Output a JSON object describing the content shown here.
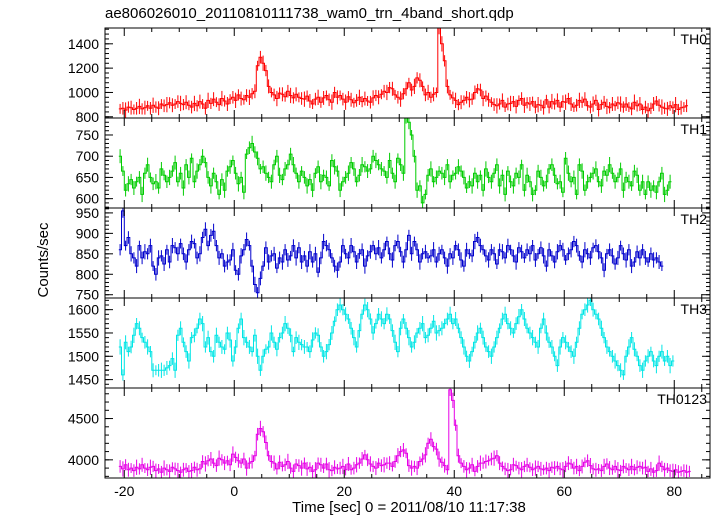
{
  "chart_data": {
    "type": "line",
    "title": "ae806026010_20110810111738_wam0_trn_4band_short.qdp",
    "xlabel": "Time [sec] 0 = 2011/08/10 11:17:38",
    "ylabel": "Counts/sec",
    "xlim": [
      -23.5,
      86.5
    ],
    "x_ticks": [
      -20,
      0,
      20,
      40,
      60,
      80
    ],
    "bin_width": 0.5,
    "panels": [
      {
        "name": "TH0",
        "color": "#ff0000",
        "ylim": [
          790,
          1530
        ],
        "y_ticks": [
          800,
          1000,
          1200,
          1400
        ],
        "x_start": -21.0,
        "values": [
          865,
          870,
          855,
          880,
          875,
          860,
          870,
          885,
          865,
          875,
          890,
          870,
          895,
          880,
          870,
          905,
          890,
          900,
          915,
          895,
          905,
          925,
          910,
          900,
          920,
          895,
          880,
          910,
          890,
          925,
          905,
          870,
          935,
          910,
          945,
          920,
          900,
          950,
          930,
          905,
          945,
          960,
          935,
          980,
          950,
          940,
          975,
          960,
          990,
          1010,
          1220,
          1290,
          1240,
          1180,
          1050,
          1000,
          980,
          950,
          995,
          985,
          965,
          1010,
          975,
          955,
          985,
          960,
          950,
          945,
          970,
          930,
          905,
          945,
          960,
          920,
          955,
          975,
          940,
          920,
          1000,
          960,
          975,
          945,
          920,
          965,
          940,
          915,
          935,
          960,
          925,
          950,
          930,
          920,
          955,
          975,
          960,
          985,
          1010,
          1000,
          1040,
          1030,
          980,
          960,
          945,
          990,
          1030,
          1080,
          1020,
          1050,
          1120,
          1100,
          1050,
          980,
          1000,
          960,
          985,
          1000,
          1530,
          1400,
          1260,
          1050,
          980,
          955,
          935,
          900,
          920,
          935,
          960,
          940,
          945,
          1000,
          1030,
          1020,
          950,
          970,
          940,
          920,
          900,
          890,
          905,
          935,
          880,
          905,
          910,
          925,
          885,
          935,
          950,
          895,
          915,
          905,
          925,
          880,
          900,
          895,
          875,
          940,
          880,
          925,
          905,
          935,
          880,
          925,
          920,
          950,
          905,
          880,
          895,
          935,
          920,
          945,
          890,
          880,
          905,
          935,
          860,
          900,
          920,
          885,
          875,
          905,
          890,
          915,
          905,
          880,
          905,
          880,
          865,
          920,
          890,
          905,
          860,
          880,
          850,
          870,
          905,
          930,
          895,
          880,
          870,
          865,
          890,
          875,
          900,
          860,
          875,
          880,
          890
        ]
      },
      {
        "name": "TH1",
        "color": "#00cc00",
        "ylim": [
          578,
          790
        ],
        "y_ticks": [
          600,
          650,
          700,
          750
        ],
        "x_start": -21.0,
        "values": [
          700,
          665,
          620,
          635,
          645,
          625,
          640,
          650,
          610,
          660,
          680,
          650,
          635,
          640,
          625,
          670,
          655,
          640,
          650,
          665,
          685,
          640,
          660,
          625,
          680,
          650,
          695,
          640,
          665,
          680,
          700,
          685,
          650,
          630,
          660,
          640,
          610,
          645,
          620,
          665,
          675,
          690,
          660,
          635,
          650,
          615,
          705,
          720,
          730,
          710,
          695,
          670,
          675,
          660,
          650,
          640,
          680,
          700,
          655,
          645,
          670,
          680,
          705,
          680,
          660,
          640,
          665,
          650,
          630,
          645,
          620,
          660,
          675,
          640,
          655,
          650,
          630,
          690,
          675,
          665,
          620,
          640,
          650,
          660,
          685,
          670,
          640,
          655,
          680,
          675,
          665,
          670,
          700,
          690,
          680,
          670,
          665,
          650,
          690,
          660,
          640,
          695,
          680,
          660,
          790,
          780,
          750,
          700,
          620,
          630,
          590,
          610,
          655,
          670,
          640,
          650,
          665,
          660,
          650,
          680,
          640,
          655,
          660,
          675,
          665,
          650,
          625,
          640,
          630,
          660,
          640,
          655,
          620,
          670,
          650,
          640,
          660,
          680,
          630,
          655,
          610,
          665,
          640,
          630,
          660,
          650,
          680,
          620,
          655,
          640,
          610,
          620,
          665,
          650,
          630,
          640,
          670,
          680,
          655,
          635,
          640,
          615,
          695,
          660,
          640,
          650,
          610,
          680,
          665,
          620,
          640,
          650,
          660,
          670,
          640,
          630,
          665,
          655,
          680,
          660,
          640,
          650,
          670,
          620,
          650,
          640,
          630,
          665,
          655,
          620,
          640,
          610,
          640,
          620,
          630,
          615,
          640,
          660,
          610,
          620,
          640
        ]
      },
      {
        "name": "TH2",
        "color": "#0000cc",
        "ylim": [
          742,
          962
        ],
        "y_ticks": [
          750,
          800,
          850,
          900,
          950
        ],
        "x_start": -21.0,
        "values": [
          860,
          955,
          870,
          890,
          850,
          840,
          820,
          870,
          840,
          855,
          850,
          870,
          820,
          800,
          840,
          845,
          825,
          860,
          830,
          870,
          865,
          850,
          875,
          850,
          830,
          860,
          880,
          875,
          840,
          850,
          890,
          910,
          870,
          895,
          905,
          870,
          840,
          850,
          820,
          830,
          835,
          860,
          810,
          800,
          845,
          860,
          885,
          870,
          820,
          775,
          755,
          790,
          820,
          865,
          830,
          845,
          850,
          815,
          840,
          830,
          860,
          835,
          845,
          870,
          840,
          865,
          830,
          845,
          820,
          855,
          830,
          850,
          805,
          840,
          880,
          870,
          860,
          840,
          820,
          810,
          830,
          870,
          850,
          840,
          870,
          855,
          830,
          850,
          860,
          820,
          845,
          855,
          870,
          850,
          865,
          840,
          860,
          880,
          850,
          835,
          870,
          880,
          855,
          830,
          860,
          895,
          850,
          880,
          860,
          830,
          850,
          855,
          840,
          845,
          860,
          830,
          850,
          860,
          840,
          820,
          850,
          840,
          870,
          860,
          835,
          820,
          860,
          850,
          845,
          880,
          890,
          870,
          860,
          845,
          835,
          860,
          850,
          825,
          860,
          855,
          840,
          870,
          860,
          845,
          830,
          865,
          855,
          840,
          860,
          850,
          870,
          835,
          850,
          865,
          845,
          820,
          860,
          845,
          830,
          855,
          870,
          860,
          835,
          850,
          860,
          880,
          870,
          845,
          830,
          860,
          850,
          840,
          865,
          870,
          855,
          840,
          810,
          850,
          860,
          845,
          825,
          840,
          870,
          850,
          835,
          860,
          820,
          830,
          855,
          840,
          860,
          840,
          830,
          850,
          835,
          840,
          830,
          820
        ]
      },
      {
        "name": "TH3",
        "color": "#00e5e5",
        "ylim": [
          1432,
          1625
        ],
        "y_ticks": [
          1450,
          1500,
          1550,
          1600
        ],
        "x_start": -21.0,
        "values": [
          1520,
          1460,
          1530,
          1510,
          1520,
          1545,
          1570,
          1560,
          1540,
          1530,
          1520,
          1510,
          1470,
          1470,
          1470,
          1470,
          1470,
          1475,
          1480,
          1495,
          1470,
          1545,
          1560,
          1530,
          1510,
          1490,
          1540,
          1545,
          1560,
          1580,
          1570,
          1520,
          1540,
          1510,
          1500,
          1545,
          1530,
          1520,
          1515,
          1550,
          1535,
          1490,
          1520,
          1560,
          1580,
          1540,
          1530,
          1520,
          1510,
          1545,
          1500,
          1470,
          1500,
          1515,
          1520,
          1550,
          1530,
          1515,
          1540,
          1550,
          1570,
          1560,
          1545,
          1510,
          1540,
          1530,
          1525,
          1520,
          1520,
          1510,
          1535,
          1550,
          1545,
          1520,
          1500,
          1510,
          1525,
          1550,
          1575,
          1600,
          1610,
          1600,
          1590,
          1580,
          1560,
          1540,
          1520,
          1555,
          1590,
          1610,
          1600,
          1580,
          1550,
          1570,
          1590,
          1580,
          1570,
          1590,
          1580,
          1555,
          1530,
          1510,
          1560,
          1580,
          1560,
          1540,
          1520,
          1530,
          1550,
          1560,
          1570,
          1540,
          1545,
          1560,
          1575,
          1550,
          1555,
          1560,
          1570,
          1580,
          1590,
          1570,
          1580,
          1560,
          1540,
          1520,
          1500,
          1490,
          1510,
          1530,
          1550,
          1560,
          1540,
          1520,
          1510,
          1500,
          1520,
          1540,
          1560,
          1580,
          1590,
          1570,
          1560,
          1550,
          1570,
          1585,
          1600,
          1580,
          1560,
          1550,
          1540,
          1530,
          1520,
          1560,
          1580,
          1550,
          1530,
          1520,
          1500,
          1480,
          1520,
          1540,
          1530,
          1520,
          1510,
          1500,
          1530,
          1560,
          1590,
          1600,
          1610,
          1620,
          1600,
          1590,
          1580,
          1560,
          1540,
          1520,
          1510,
          1500,
          1490,
          1480,
          1470,
          1460,
          1500,
          1520,
          1540,
          1515,
          1500,
          1480,
          1470,
          1490,
          1500,
          1510,
          1490,
          1480,
          1500,
          1510,
          1490,
          1500,
          1480,
          1490
        ]
      },
      {
        "name": "TH0123",
        "color": "#e600e6",
        "ylim": [
          3780,
          4870
        ],
        "y_ticks": [
          4000,
          4500
        ],
        "x_start": -21.0,
        "values": [
          3920,
          3890,
          3940,
          3880,
          3900,
          3870,
          3910,
          3890,
          3940,
          3900,
          3880,
          3910,
          3920,
          3870,
          3890,
          3850,
          3900,
          3880,
          3860,
          3910,
          3890,
          3870,
          3850,
          3880,
          3900,
          3860,
          3870,
          3910,
          3880,
          3890,
          3980,
          3950,
          3990,
          4010,
          3960,
          3930,
          4020,
          4000,
          3960,
          3990,
          3940,
          4070,
          4030,
          3990,
          3960,
          4010,
          3900,
          3960,
          3980,
          4050,
          4310,
          4380,
          4340,
          4210,
          4050,
          3980,
          3960,
          3890,
          3970,
          3920,
          3940,
          3980,
          3900,
          3860,
          3950,
          3930,
          3900,
          3960,
          3890,
          3910,
          3860,
          3880,
          3960,
          3940,
          3900,
          3950,
          3880,
          3870,
          3910,
          3890,
          3900,
          3920,
          3880,
          3950,
          3880,
          3900,
          3940,
          3960,
          4010,
          4060,
          4000,
          3950,
          3920,
          3900,
          3960,
          3930,
          3940,
          3960,
          3960,
          3920,
          3980,
          4050,
          4100,
          4120,
          4080,
          3930,
          3900,
          3920,
          3900,
          3980,
          4010,
          4060,
          4200,
          4250,
          4160,
          4130,
          4010,
          3970,
          3930,
          3880,
          4850,
          4720,
          4420,
          4050,
          3960,
          3920,
          3880,
          3900,
          3940,
          3860,
          3920,
          3960,
          3960,
          3980,
          3990,
          4010,
          4020,
          4050,
          3960,
          3920,
          3890,
          3870,
          3880,
          3940,
          3930,
          3900,
          3880,
          3920,
          3940,
          3910,
          3880,
          3900,
          3920,
          3890,
          3880,
          3900,
          3870,
          3910,
          3900,
          3920,
          3890,
          3880,
          3920,
          3960,
          3950,
          3900,
          3920,
          3870,
          3920,
          3970,
          3990,
          3930,
          3890,
          3880,
          3890,
          3870,
          3920,
          3950,
          3900,
          3880,
          3920,
          3880,
          3870,
          3920,
          3900,
          3880,
          3920,
          3880,
          3910,
          3920,
          3900,
          3910,
          3860,
          3890,
          3850,
          3870,
          3960,
          3920,
          3880,
          3900,
          3870,
          3860,
          3880,
          3850,
          3860,
          3870,
          3850,
          3860
        ]
      }
    ]
  }
}
